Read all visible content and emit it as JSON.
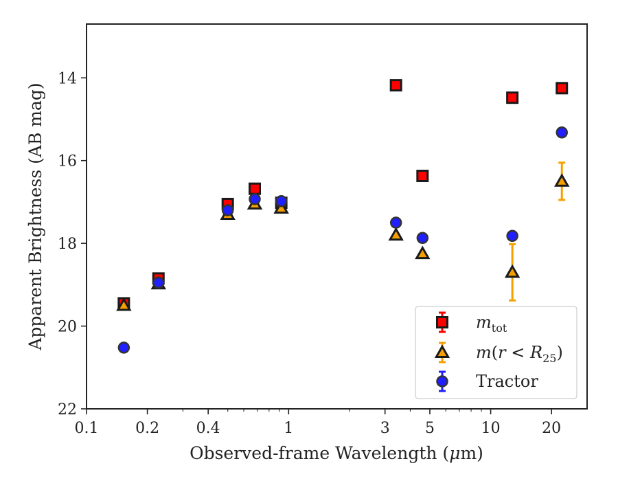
{
  "chart_data": {
    "type": "scatter",
    "x_scale": "log",
    "y_inverted": true,
    "xlabel_prefix": "Observed-frame Wavelength (",
    "xlabel_mu": "μ",
    "xlabel_suffix": "m)",
    "ylabel": "Apparent Brightness (AB mag)",
    "xlim": [
      0.1,
      30
    ],
    "ylim": [
      22,
      12.7
    ],
    "x_ticks": [
      {
        "value": 0.1,
        "label": "0.1"
      },
      {
        "value": 0.2,
        "label": "0.2"
      },
      {
        "value": 0.4,
        "label": "0.4"
      },
      {
        "value": 1,
        "label": "1"
      },
      {
        "value": 3,
        "label": "3"
      },
      {
        "value": 5,
        "label": "5"
      },
      {
        "value": 10,
        "label": "10"
      },
      {
        "value": 20,
        "label": "20"
      }
    ],
    "y_ticks": [
      {
        "value": 14,
        "label": "14"
      },
      {
        "value": 16,
        "label": "16"
      },
      {
        "value": 18,
        "label": "18"
      },
      {
        "value": 20,
        "label": "20"
      },
      {
        "value": 22,
        "label": "22"
      }
    ],
    "legend_position": "lower-right",
    "series": [
      {
        "key": "mtot",
        "legend_main": "m",
        "legend_sub": "tot",
        "marker": "square",
        "fill": "#ff0000",
        "edge": "#1a1a1a",
        "errcolor": "#ff0000",
        "x": [
          0.153,
          0.227,
          0.5,
          0.68,
          0.92,
          3.4,
          4.6,
          12.8,
          22.5
        ],
        "y": [
          19.45,
          18.85,
          17.05,
          16.68,
          17.02,
          14.18,
          16.37,
          14.48,
          14.25
        ],
        "yerr": [
          0.05,
          0.05,
          0.02,
          0.02,
          0.02,
          0.02,
          0.02,
          0.02,
          0.03
        ]
      },
      {
        "key": "mr25",
        "legend_main": "m",
        "legend_paren_open": "(",
        "legend_r": "r",
        "legend_lt": " < ",
        "legend_R": "R",
        "legend_sub": "25",
        "legend_paren_close": ")",
        "marker": "triangle",
        "fill": "#f5a000",
        "edge": "#1a1a1a",
        "errcolor": "#f5a000",
        "x": [
          0.153,
          0.227,
          0.5,
          0.68,
          0.92,
          3.4,
          4.6,
          12.8,
          22.5
        ],
        "y": [
          19.5,
          18.98,
          17.3,
          17.05,
          17.15,
          17.8,
          18.25,
          18.7,
          16.5
        ],
        "yerr": [
          0.03,
          0.03,
          0.02,
          0.02,
          0.02,
          0.03,
          0.03,
          0.68,
          0.45
        ]
      },
      {
        "key": "tractor",
        "legend_main": "Tractor",
        "marker": "circle",
        "fill": "#1f1fff",
        "edge": "#333333",
        "errcolor": "#1f1fff",
        "x": [
          0.153,
          0.227,
          0.5,
          0.68,
          0.92,
          3.4,
          4.6,
          12.8,
          22.5
        ],
        "y": [
          20.52,
          18.95,
          17.2,
          16.93,
          16.98,
          17.5,
          17.87,
          17.82,
          15.32
        ],
        "yerr": [
          0.04,
          0.03,
          0.02,
          0.02,
          0.02,
          0.03,
          0.03,
          0.05,
          0.05
        ]
      }
    ]
  }
}
